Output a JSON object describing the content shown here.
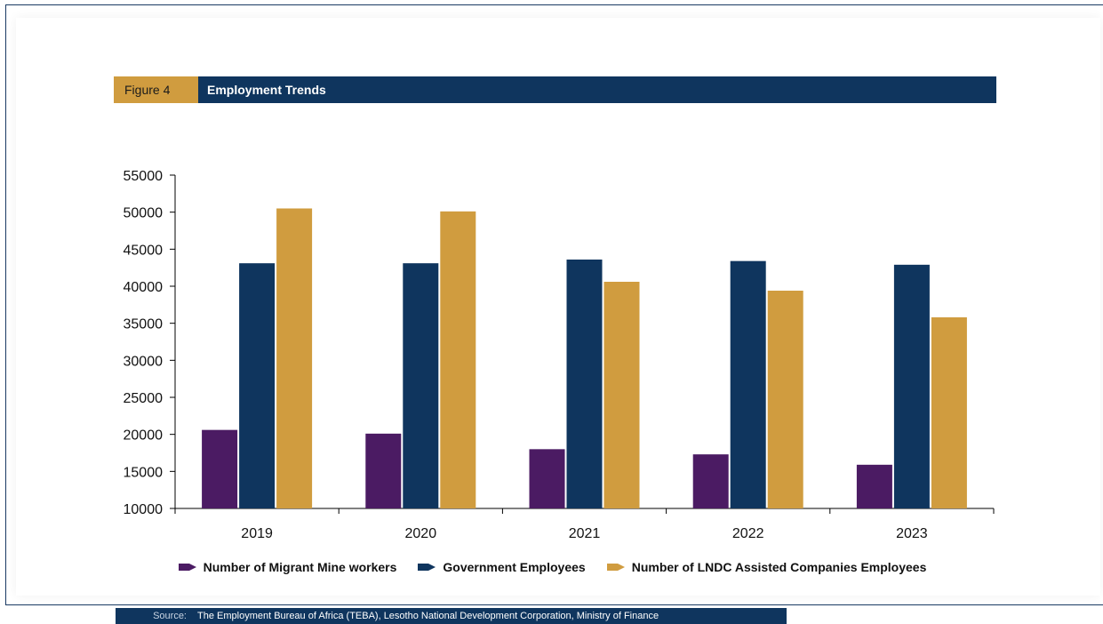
{
  "figure": {
    "number": "Figure 4",
    "title": "Employment Trends"
  },
  "source": {
    "label": "Source:",
    "text": "The Employment Bureau of Africa (TEBA), Lesotho National Development Corporation, Ministry of Finance"
  },
  "chart_data": {
    "type": "bar",
    "title": "Employment Trends",
    "xlabel": "",
    "ylabel": "",
    "categories": [
      "2019",
      "2020",
      "2021",
      "2022",
      "2023"
    ],
    "series": [
      {
        "name": "Number of Migrant Mine workers",
        "color": "#4b1b63",
        "values": [
          20600,
          20100,
          18000,
          17300,
          15900
        ]
      },
      {
        "name": "Government Employees",
        "color": "#0f355e",
        "values": [
          43100,
          43100,
          43600,
          43400,
          42900
        ]
      },
      {
        "name": "Number of LNDC Assisted Companies Employees",
        "color": "#d09c3f",
        "values": [
          50500,
          50100,
          40600,
          39400,
          35800
        ]
      }
    ],
    "ylim": [
      10000,
      55000
    ],
    "yticks": [
      "10000",
      "15000",
      "20000",
      "25000",
      "30000",
      "35000",
      "40000",
      "45000",
      "50000",
      "55000"
    ],
    "grid": false,
    "legend": "bottom"
  }
}
